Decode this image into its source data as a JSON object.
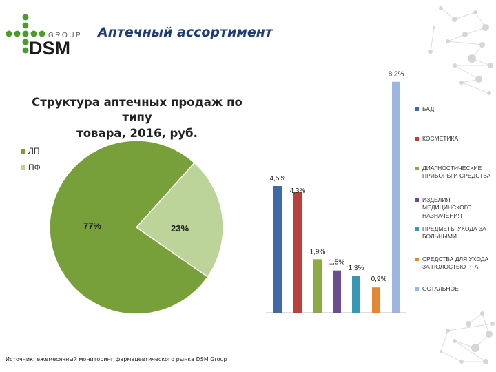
{
  "header": {
    "title": "Аптечный ассортимент",
    "logo_group": "GROUP",
    "logo_name": "DSM"
  },
  "footer": {
    "source": "Источник: ежемесячный мониторинг фармацевтического рынка DSM Group"
  },
  "chart_data": [
    {
      "type": "pie",
      "title_line1": "Структура аптечных продаж по типу",
      "title_line2": "товара, 2016, руб.",
      "slices": [
        {
          "name": "ЛП",
          "value": 77,
          "label": "77%",
          "color": "#77a03a"
        },
        {
          "name": "ПФ",
          "value": 23,
          "label": "23%",
          "color": "#bcd39a"
        }
      ],
      "legend_placement": "top-left"
    },
    {
      "type": "bar",
      "ylim": [
        0,
        9
      ],
      "grid": false,
      "legend_placement": "right",
      "series": [
        {
          "name": "БАД",
          "value": 4.5,
          "label": "4,5%",
          "color": "#3e6aa8"
        },
        {
          "name": "Косметика",
          "value": 4.3,
          "label": "4,3%",
          "color": "#b8423b"
        },
        {
          "name": "Диагностические приборы и средства",
          "value": 1.9,
          "label": "1,9%",
          "color": "#8cab45"
        },
        {
          "name": "Изделия медицинского назначения",
          "value": 1.5,
          "label": "1,5%",
          "color": "#6a4c91"
        },
        {
          "name": "Предметы ухода за больными",
          "value": 1.3,
          "label": "1,3%",
          "color": "#3797b5"
        },
        {
          "name": "Средства для ухода за полостью рта",
          "value": 0.9,
          "label": "0,9%",
          "color": "#e38735"
        },
        {
          "name": "Остальное",
          "value": 8.2,
          "label": "8,2%",
          "color": "#9db6dd"
        }
      ]
    }
  ]
}
